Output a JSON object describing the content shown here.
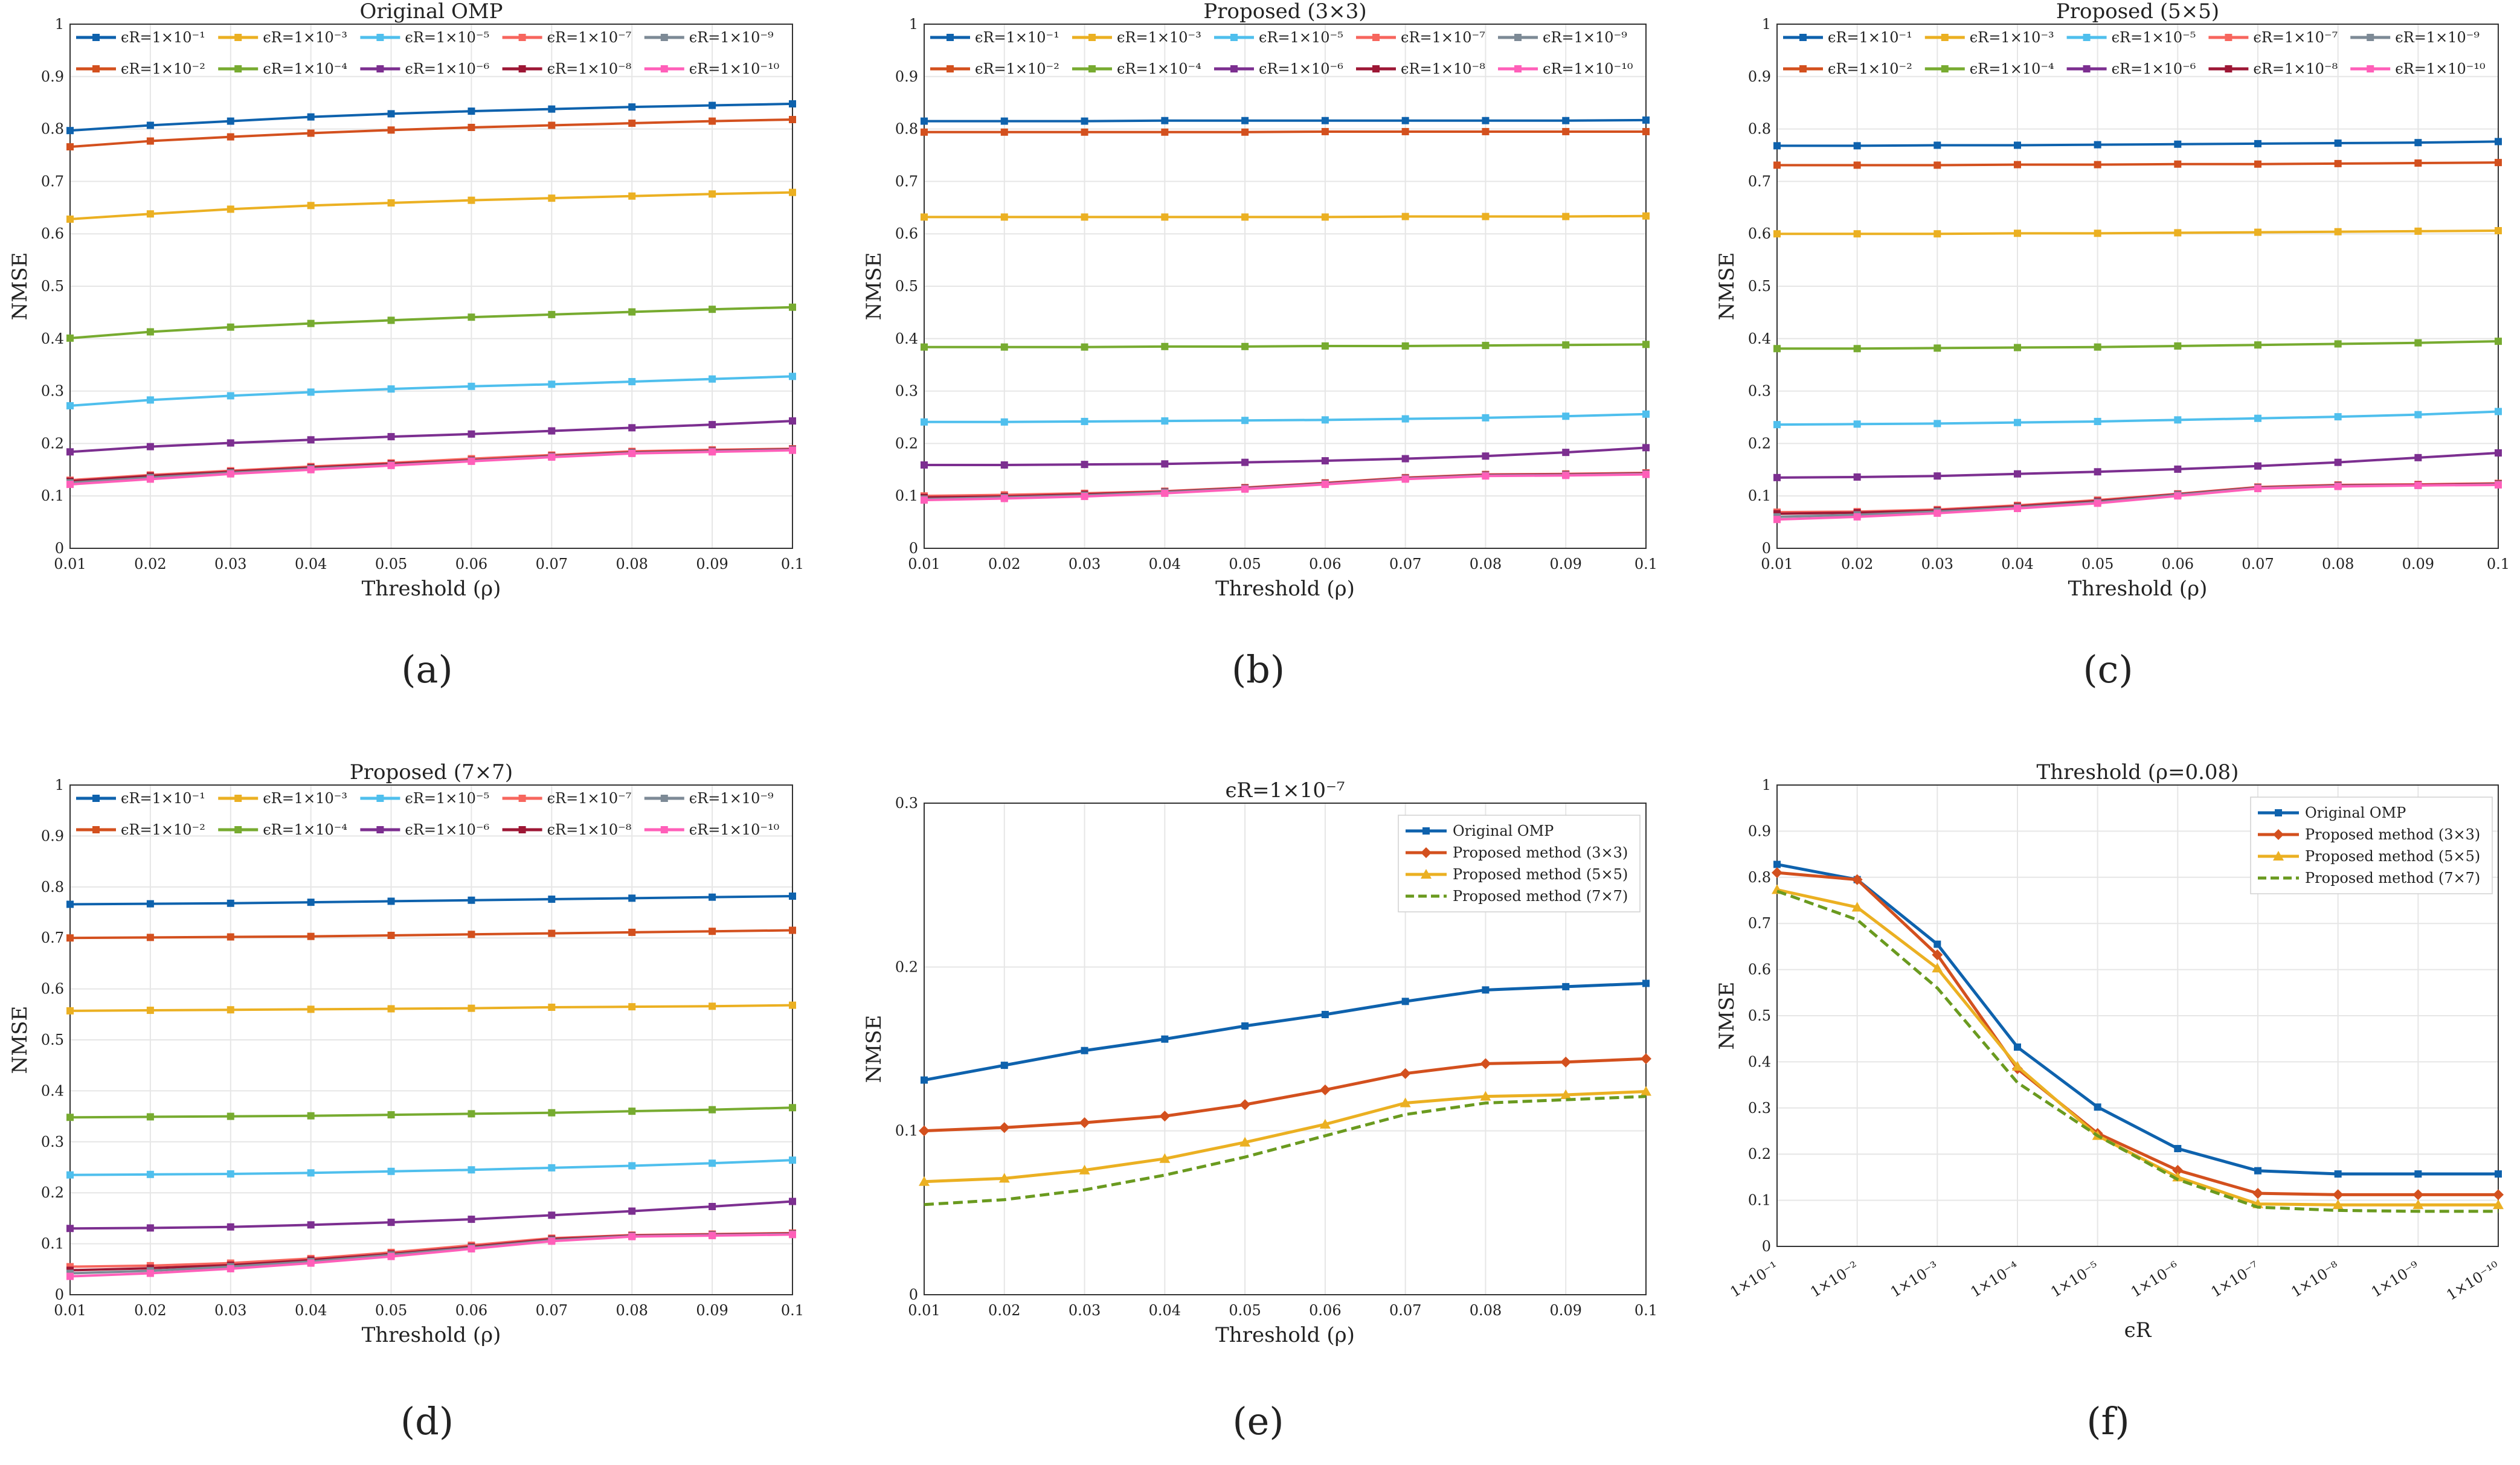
{
  "colors": {
    "e1": "#0e62ad",
    "e2": "#d3501e",
    "e3": "#ebb022",
    "e4": "#77ab30",
    "e5": "#4fbfed",
    "e6": "#7c2f90",
    "e7": "#f7665e",
    "e8": "#9d1735",
    "e9": "#7d8a96",
    "e10": "#ff5fb9",
    "omp": "#0e62ad",
    "p3": "#d3501e",
    "p5": "#ebb022",
    "p7": "#6a9a1f"
  },
  "captions": [
    "(a)",
    "(b)",
    "(c)",
    "(d)",
    "(e)",
    "(f)"
  ],
  "chart_data": [
    {
      "type": "line",
      "id": "a",
      "title": "Original OMP",
      "xlabel": "Threshold (ρ)",
      "ylabel": "NMSE",
      "x": [
        0.01,
        0.02,
        0.03,
        0.04,
        0.05,
        0.06,
        0.07,
        0.08,
        0.09,
        0.1
      ],
      "xticks": [
        "0.01",
        "0.02",
        "0.03",
        "0.04",
        "0.05",
        "0.06",
        "0.07",
        "0.08",
        "0.09",
        "0.1"
      ],
      "ylim": [
        0,
        1
      ],
      "yticks": [
        "0",
        "0.1",
        "0.2",
        "0.3",
        "0.4",
        "0.5",
        "0.6",
        "0.7",
        "0.8",
        "0.9",
        "1"
      ],
      "grid": true,
      "legend": "top",
      "series": [
        {
          "name": "ϵR=1×10⁻¹",
          "color": "e1",
          "values": [
            0.797,
            0.807,
            0.815,
            0.823,
            0.829,
            0.834,
            0.838,
            0.842,
            0.845,
            0.848
          ]
        },
        {
          "name": "ϵR=1×10⁻²",
          "color": "e2",
          "values": [
            0.766,
            0.777,
            0.785,
            0.792,
            0.798,
            0.803,
            0.807,
            0.811,
            0.815,
            0.818
          ]
        },
        {
          "name": "ϵR=1×10⁻³",
          "color": "e3",
          "values": [
            0.628,
            0.638,
            0.647,
            0.654,
            0.659,
            0.664,
            0.668,
            0.672,
            0.676,
            0.679
          ]
        },
        {
          "name": "ϵR=1×10⁻⁴",
          "color": "e4",
          "values": [
            0.401,
            0.413,
            0.422,
            0.429,
            0.435,
            0.441,
            0.446,
            0.451,
            0.456,
            0.46
          ]
        },
        {
          "name": "ϵR=1×10⁻⁵",
          "color": "e5",
          "values": [
            0.272,
            0.283,
            0.291,
            0.298,
            0.304,
            0.309,
            0.313,
            0.318,
            0.323,
            0.328
          ]
        },
        {
          "name": "ϵR=1×10⁻⁶",
          "color": "e6",
          "values": [
            0.184,
            0.194,
            0.201,
            0.207,
            0.213,
            0.218,
            0.224,
            0.23,
            0.236,
            0.243
          ]
        },
        {
          "name": "ϵR=1×10⁻⁷",
          "color": "e7",
          "values": [
            0.13,
            0.14,
            0.148,
            0.156,
            0.163,
            0.171,
            0.178,
            0.185,
            0.188,
            0.19
          ]
        },
        {
          "name": "ϵR=1×10⁻⁸",
          "color": "e8",
          "values": [
            0.128,
            0.138,
            0.146,
            0.154,
            0.161,
            0.168,
            0.176,
            0.183,
            0.186,
            0.189
          ]
        },
        {
          "name": "ϵR=1×10⁻⁹",
          "color": "e9",
          "values": [
            0.125,
            0.135,
            0.144,
            0.152,
            0.159,
            0.167,
            0.175,
            0.182,
            0.185,
            0.188
          ]
        },
        {
          "name": "ϵR=1×10⁻¹⁰",
          "color": "e10",
          "values": [
            0.122,
            0.132,
            0.142,
            0.15,
            0.158,
            0.166,
            0.174,
            0.181,
            0.184,
            0.187
          ]
        }
      ]
    },
    {
      "type": "line",
      "id": "b",
      "title": "Proposed (3×3)",
      "xlabel": "Threshold (ρ)",
      "ylabel": "NMSE",
      "x": [
        0.01,
        0.02,
        0.03,
        0.04,
        0.05,
        0.06,
        0.07,
        0.08,
        0.09,
        0.1
      ],
      "xticks": [
        "0.01",
        "0.02",
        "0.03",
        "0.04",
        "0.05",
        "0.06",
        "0.07",
        "0.08",
        "0.09",
        "0.1"
      ],
      "ylim": [
        0,
        1
      ],
      "yticks": [
        "0",
        "0.1",
        "0.2",
        "0.3",
        "0.4",
        "0.5",
        "0.6",
        "0.7",
        "0.8",
        "0.9",
        "1"
      ],
      "grid": true,
      "legend": "top",
      "series": [
        {
          "name": "ϵR=1×10⁻¹",
          "color": "e1",
          "values": [
            0.815,
            0.815,
            0.815,
            0.816,
            0.816,
            0.816,
            0.816,
            0.816,
            0.816,
            0.817
          ]
        },
        {
          "name": "ϵR=1×10⁻²",
          "color": "e2",
          "values": [
            0.794,
            0.794,
            0.794,
            0.794,
            0.794,
            0.795,
            0.795,
            0.795,
            0.795,
            0.795
          ]
        },
        {
          "name": "ϵR=1×10⁻³",
          "color": "e3",
          "values": [
            0.632,
            0.632,
            0.632,
            0.632,
            0.632,
            0.632,
            0.633,
            0.633,
            0.633,
            0.634
          ]
        },
        {
          "name": "ϵR=1×10⁻⁴",
          "color": "e4",
          "values": [
            0.384,
            0.384,
            0.384,
            0.385,
            0.385,
            0.386,
            0.386,
            0.387,
            0.388,
            0.389
          ]
        },
        {
          "name": "ϵR=1×10⁻⁵",
          "color": "e5",
          "values": [
            0.241,
            0.241,
            0.242,
            0.243,
            0.244,
            0.245,
            0.247,
            0.249,
            0.252,
            0.256
          ]
        },
        {
          "name": "ϵR=1×10⁻⁶",
          "color": "e6",
          "values": [
            0.159,
            0.159,
            0.16,
            0.161,
            0.164,
            0.167,
            0.171,
            0.176,
            0.183,
            0.192
          ]
        },
        {
          "name": "ϵR=1×10⁻⁷",
          "color": "e7",
          "values": [
            0.1,
            0.102,
            0.105,
            0.109,
            0.116,
            0.125,
            0.135,
            0.141,
            0.142,
            0.144
          ]
        },
        {
          "name": "ϵR=1×10⁻⁸",
          "color": "e8",
          "values": [
            0.097,
            0.099,
            0.103,
            0.108,
            0.115,
            0.124,
            0.134,
            0.14,
            0.141,
            0.143
          ]
        },
        {
          "name": "ϵR=1×10⁻⁹",
          "color": "e9",
          "values": [
            0.094,
            0.097,
            0.101,
            0.107,
            0.114,
            0.123,
            0.133,
            0.139,
            0.14,
            0.142
          ]
        },
        {
          "name": "ϵR=1×10⁻¹⁰",
          "color": "e10",
          "values": [
            0.092,
            0.095,
            0.099,
            0.105,
            0.113,
            0.122,
            0.132,
            0.138,
            0.139,
            0.141
          ]
        }
      ]
    },
    {
      "type": "line",
      "id": "c",
      "title": "Proposed (5×5)",
      "xlabel": "Threshold (ρ)",
      "ylabel": "NMSE",
      "x": [
        0.01,
        0.02,
        0.03,
        0.04,
        0.05,
        0.06,
        0.07,
        0.08,
        0.09,
        0.1
      ],
      "xticks": [
        "0.01",
        "0.02",
        "0.03",
        "0.04",
        "0.05",
        "0.06",
        "0.07",
        "0.08",
        "0.09",
        "0.1"
      ],
      "ylim": [
        0,
        1
      ],
      "yticks": [
        "0",
        "0.1",
        "0.2",
        "0.3",
        "0.4",
        "0.5",
        "0.6",
        "0.7",
        "0.8",
        "0.9",
        "1"
      ],
      "grid": true,
      "legend": "top",
      "series": [
        {
          "name": "ϵR=1×10⁻¹",
          "color": "e1",
          "values": [
            0.768,
            0.768,
            0.769,
            0.769,
            0.77,
            0.771,
            0.772,
            0.773,
            0.774,
            0.776
          ]
        },
        {
          "name": "ϵR=1×10⁻²",
          "color": "e2",
          "values": [
            0.731,
            0.731,
            0.731,
            0.732,
            0.732,
            0.733,
            0.733,
            0.734,
            0.735,
            0.736
          ]
        },
        {
          "name": "ϵR=1×10⁻³",
          "color": "e3",
          "values": [
            0.6,
            0.6,
            0.6,
            0.601,
            0.601,
            0.602,
            0.603,
            0.604,
            0.605,
            0.606
          ]
        },
        {
          "name": "ϵR=1×10⁻⁴",
          "color": "e4",
          "values": [
            0.381,
            0.381,
            0.382,
            0.383,
            0.384,
            0.386,
            0.388,
            0.39,
            0.392,
            0.395
          ]
        },
        {
          "name": "ϵR=1×10⁻⁵",
          "color": "e5",
          "values": [
            0.236,
            0.237,
            0.238,
            0.24,
            0.242,
            0.245,
            0.248,
            0.251,
            0.255,
            0.261
          ]
        },
        {
          "name": "ϵR=1×10⁻⁶",
          "color": "e6",
          "values": [
            0.135,
            0.136,
            0.138,
            0.142,
            0.146,
            0.151,
            0.157,
            0.164,
            0.173,
            0.182
          ]
        },
        {
          "name": "ϵR=1×10⁻⁷",
          "color": "e7",
          "values": [
            0.069,
            0.07,
            0.074,
            0.082,
            0.092,
            0.104,
            0.117,
            0.121,
            0.122,
            0.124
          ]
        },
        {
          "name": "ϵR=1×10⁻⁸",
          "color": "e8",
          "values": [
            0.066,
            0.068,
            0.072,
            0.08,
            0.09,
            0.103,
            0.116,
            0.12,
            0.121,
            0.123
          ]
        },
        {
          "name": "ϵR=1×10⁻⁹",
          "color": "e9",
          "values": [
            0.06,
            0.064,
            0.07,
            0.078,
            0.088,
            0.102,
            0.115,
            0.119,
            0.12,
            0.122
          ]
        },
        {
          "name": "ϵR=1×10⁻¹⁰",
          "color": "e10",
          "values": [
            0.055,
            0.06,
            0.067,
            0.076,
            0.086,
            0.1,
            0.114,
            0.118,
            0.12,
            0.121
          ]
        }
      ]
    },
    {
      "type": "line",
      "id": "d",
      "title": "Proposed (7×7)",
      "xlabel": "Threshold (ρ)",
      "ylabel": "NMSE",
      "x": [
        0.01,
        0.02,
        0.03,
        0.04,
        0.05,
        0.06,
        0.07,
        0.08,
        0.09,
        0.1
      ],
      "xticks": [
        "0.01",
        "0.02",
        "0.03",
        "0.04",
        "0.05",
        "0.06",
        "0.07",
        "0.08",
        "0.09",
        "0.1"
      ],
      "ylim": [
        0,
        1
      ],
      "yticks": [
        "0",
        "0.1",
        "0.2",
        "0.3",
        "0.4",
        "0.5",
        "0.6",
        "0.7",
        "0.8",
        "0.9",
        "1"
      ],
      "grid": true,
      "legend": "top",
      "series": [
        {
          "name": "ϵR=1×10⁻¹",
          "color": "e1",
          "values": [
            0.766,
            0.767,
            0.768,
            0.77,
            0.772,
            0.774,
            0.776,
            0.778,
            0.78,
            0.782
          ]
        },
        {
          "name": "ϵR=1×10⁻²",
          "color": "e2",
          "values": [
            0.7,
            0.701,
            0.702,
            0.703,
            0.705,
            0.707,
            0.709,
            0.711,
            0.713,
            0.715
          ]
        },
        {
          "name": "ϵR=1×10⁻³",
          "color": "e3",
          "values": [
            0.557,
            0.558,
            0.559,
            0.56,
            0.561,
            0.562,
            0.564,
            0.565,
            0.566,
            0.568
          ]
        },
        {
          "name": "ϵR=1×10⁻⁴",
          "color": "e4",
          "values": [
            0.348,
            0.349,
            0.35,
            0.351,
            0.353,
            0.355,
            0.357,
            0.36,
            0.363,
            0.367
          ]
        },
        {
          "name": "ϵR=1×10⁻⁵",
          "color": "e5",
          "values": [
            0.235,
            0.236,
            0.237,
            0.239,
            0.242,
            0.245,
            0.249,
            0.253,
            0.258,
            0.264
          ]
        },
        {
          "name": "ϵR=1×10⁻⁶",
          "color": "e6",
          "values": [
            0.13,
            0.131,
            0.133,
            0.137,
            0.142,
            0.148,
            0.156,
            0.164,
            0.173,
            0.183
          ]
        },
        {
          "name": "ϵR=1×10⁻⁷",
          "color": "e7",
          "values": [
            0.055,
            0.057,
            0.062,
            0.071,
            0.083,
            0.097,
            0.111,
            0.117,
            0.119,
            0.121
          ]
        },
        {
          "name": "ϵR=1×10⁻⁸",
          "color": "e8",
          "values": [
            0.048,
            0.052,
            0.058,
            0.068,
            0.08,
            0.094,
            0.109,
            0.116,
            0.118,
            0.12
          ]
        },
        {
          "name": "ϵR=1×10⁻⁹",
          "color": "e9",
          "values": [
            0.042,
            0.047,
            0.055,
            0.065,
            0.078,
            0.092,
            0.107,
            0.115,
            0.117,
            0.119
          ]
        },
        {
          "name": "ϵR=1×10⁻¹⁰",
          "color": "e10",
          "values": [
            0.036,
            0.042,
            0.051,
            0.062,
            0.075,
            0.09,
            0.105,
            0.114,
            0.116,
            0.118
          ]
        }
      ]
    },
    {
      "type": "line",
      "id": "e",
      "title": "ϵR=1×10⁻⁷",
      "xlabel": "Threshold (ρ)",
      "ylabel": "NMSE",
      "x": [
        0.01,
        0.02,
        0.03,
        0.04,
        0.05,
        0.06,
        0.07,
        0.08,
        0.09,
        0.1
      ],
      "xticks": [
        "0.01",
        "0.02",
        "0.03",
        "0.04",
        "0.05",
        "0.06",
        "0.07",
        "0.08",
        "0.09",
        "0.1"
      ],
      "ylim": [
        0,
        0.3
      ],
      "yticks": [
        "0",
        "0.1",
        "0.2",
        "0.3"
      ],
      "grid": true,
      "legend": "top-right",
      "series": [
        {
          "name": "Original OMP",
          "color": "omp",
          "values": [
            0.131,
            0.14,
            0.149,
            0.156,
            0.164,
            0.171,
            0.179,
            0.186,
            0.188,
            0.19
          ]
        },
        {
          "name": "Proposed method (3×3)",
          "color": "p3",
          "values": [
            0.1,
            0.102,
            0.105,
            0.109,
            0.116,
            0.125,
            0.135,
            0.141,
            0.142,
            0.144
          ]
        },
        {
          "name": "Proposed method (5×5)",
          "color": "p5",
          "values": [
            0.069,
            0.071,
            0.076,
            0.083,
            0.093,
            0.104,
            0.117,
            0.121,
            0.122,
            0.124
          ]
        },
        {
          "name": "Proposed method (7×7)",
          "color": "p7",
          "values": [
            0.055,
            0.058,
            0.064,
            0.073,
            0.084,
            0.097,
            0.11,
            0.117,
            0.119,
            0.121
          ]
        }
      ]
    },
    {
      "type": "line",
      "id": "f",
      "title": "Threshold (ρ=0.08)",
      "xlabel": "ϵR",
      "ylabel": "NMSE",
      "x": [
        "1×10⁻¹",
        "1×10⁻²",
        "1×10⁻³",
        "1×10⁻⁴",
        "1×10⁻⁵",
        "1×10⁻⁶",
        "1×10⁻⁷",
        "1×10⁻⁸",
        "1×10⁻⁹",
        "1×10⁻¹⁰"
      ],
      "xticks": [
        "1×10⁻¹",
        "1×10⁻²",
        "1×10⁻³",
        "1×10⁻⁴",
        "1×10⁻⁵",
        "1×10⁻⁶",
        "1×10⁻⁷",
        "1×10⁻⁸",
        "1×10⁻⁹",
        "1×10⁻¹⁰"
      ],
      "ylim": [
        0,
        1
      ],
      "yticks": [
        "0",
        "0.1",
        "0.2",
        "0.3",
        "0.4",
        "0.5",
        "0.6",
        "0.7",
        "0.8",
        "0.9",
        "1"
      ],
      "grid": true,
      "legend": "top-right",
      "series": [
        {
          "name": "Original OMP",
          "color": "omp",
          "values": [
            0.828,
            0.795,
            0.655,
            0.432,
            0.302,
            0.212,
            0.164,
            0.157,
            0.157,
            0.157
          ]
        },
        {
          "name": "Proposed method (3×3)",
          "color": "p3",
          "values": [
            0.81,
            0.795,
            0.632,
            0.385,
            0.245,
            0.165,
            0.115,
            0.112,
            0.112,
            0.112
          ]
        },
        {
          "name": "Proposed method (5×5)",
          "color": "p5",
          "values": [
            0.773,
            0.735,
            0.603,
            0.39,
            0.24,
            0.15,
            0.092,
            0.09,
            0.09,
            0.09
          ]
        },
        {
          "name": "Proposed method (7×7)",
          "color": "p7",
          "values": [
            0.77,
            0.708,
            0.56,
            0.355,
            0.24,
            0.145,
            0.085,
            0.078,
            0.076,
            0.076
          ]
        }
      ]
    }
  ]
}
